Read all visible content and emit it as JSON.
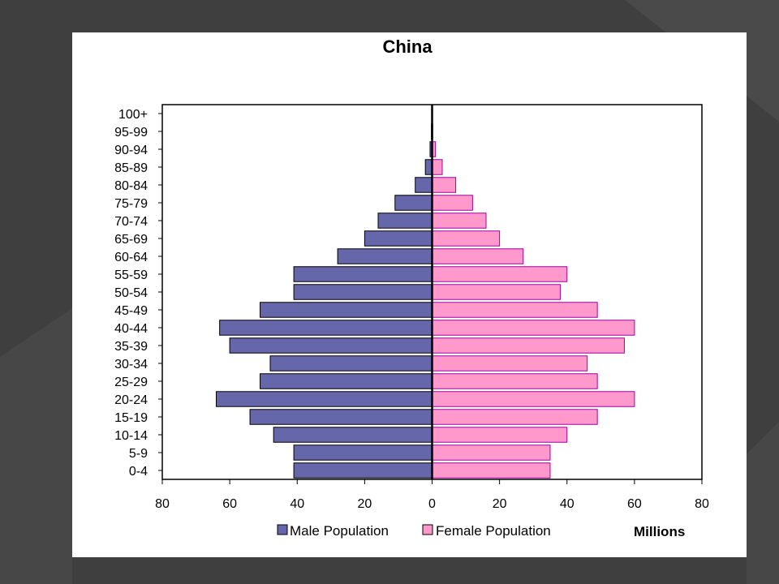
{
  "chart_data": {
    "type": "bar",
    "orientation": "horizontal",
    "title": "China",
    "categories": [
      "0-4",
      "5-9",
      "10-14",
      "15-19",
      "20-24",
      "25-29",
      "30-34",
      "35-39",
      "40-44",
      "45-49",
      "50-54",
      "55-59",
      "60-64",
      "65-69",
      "70-74",
      "75-79",
      "80-84",
      "85-89",
      "90-94",
      "95-99",
      "100+"
    ],
    "series": [
      {
        "name": "Male Population",
        "color": "#6666aa",
        "values": [
          41,
          41,
          47,
          54,
          64,
          51,
          48,
          60,
          63,
          51,
          41,
          41,
          28,
          20,
          16,
          11,
          5,
          2,
          0.6,
          0.2,
          0
        ]
      },
      {
        "name": "Female Population",
        "color": "#ff99cc",
        "values": [
          35,
          35,
          40,
          49,
          60,
          49,
          46,
          57,
          60,
          49,
          38,
          40,
          27,
          20,
          16,
          12,
          7,
          3,
          1,
          0.2,
          0
        ]
      }
    ],
    "xlim": [
      -80,
      80
    ],
    "x_ticks": [
      80,
      60,
      40,
      20,
      0,
      20,
      40,
      60,
      80
    ],
    "units_label": "Millions",
    "legend_position": "bottom",
    "grid": false
  }
}
